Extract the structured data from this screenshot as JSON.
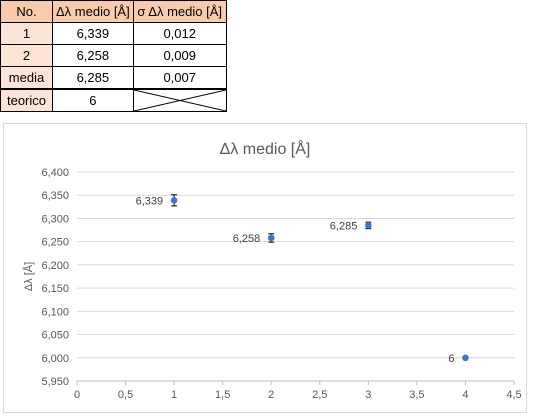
{
  "table": {
    "headers": [
      "No.",
      "Δλ medio [Å]",
      "σ Δλ medio [Å]"
    ],
    "rows": [
      {
        "label": "1",
        "value": "6,339",
        "sigma": "0,012"
      },
      {
        "label": "2",
        "value": "6,258",
        "sigma": "0,009"
      },
      {
        "label": "media",
        "value": "6,285",
        "sigma": "0,007"
      }
    ],
    "teorico": {
      "label": "teorico",
      "value": "6"
    }
  },
  "chart_data": {
    "type": "scatter",
    "title": "Δλ medio [Å]",
    "xlabel": "",
    "ylabel": "Δλ [Å]",
    "xlim": [
      0,
      4.5
    ],
    "ylim": [
      5.95,
      6.4
    ],
    "x_ticks": [
      "0",
      "0,5",
      "1",
      "1,5",
      "2",
      "2,5",
      "3",
      "3,5",
      "4",
      "4,5"
    ],
    "y_ticks": [
      "5,950",
      "6,000",
      "6,050",
      "6,100",
      "6,150",
      "6,200",
      "6,250",
      "6,300",
      "6,350",
      "6,400"
    ],
    "grid": "horizontal",
    "marker_color": "#4472c4",
    "points": [
      {
        "x": 1,
        "y": 6.339,
        "err": 0.012,
        "label": "6,339",
        "label_pos": "left"
      },
      {
        "x": 2,
        "y": 6.258,
        "err": 0.009,
        "label": "6,258",
        "label_pos": "left"
      },
      {
        "x": 3,
        "y": 6.285,
        "err": 0.007,
        "label": "6,285",
        "label_pos": "left"
      },
      {
        "x": 4,
        "y": 6.0,
        "err": 0,
        "label": "6",
        "label_pos": "left"
      }
    ]
  }
}
